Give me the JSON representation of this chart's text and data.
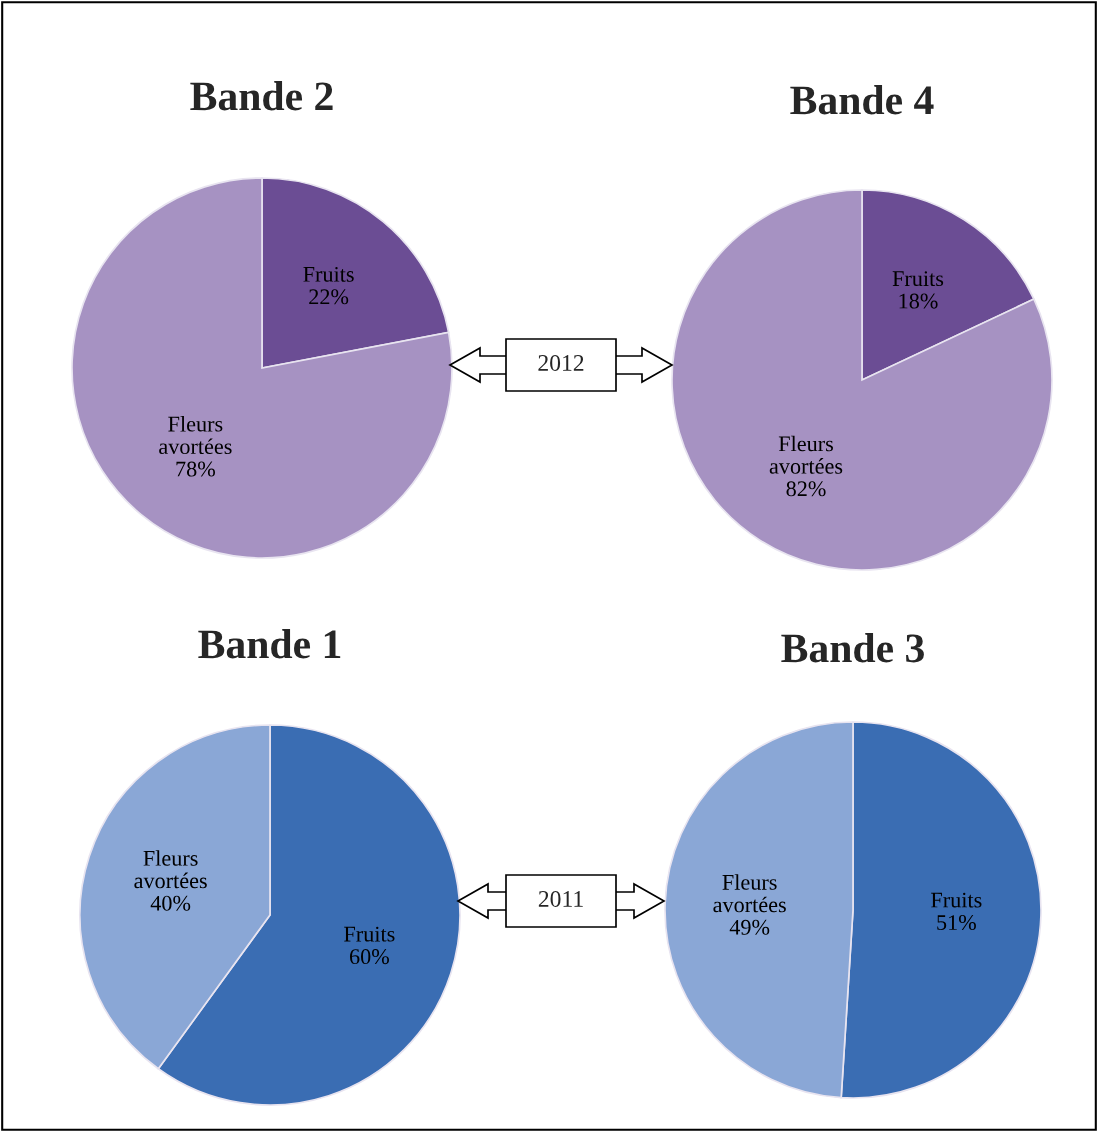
{
  "chart_data": [
    {
      "type": "pie",
      "title": "Bande 2",
      "categories": [
        "Fruits",
        "Fleurs avortées"
      ],
      "values": [
        22,
        78
      ],
      "colors": [
        "#6b4d94",
        "#a692c2"
      ],
      "value_labels": [
        "22%",
        "78%"
      ],
      "annotations": [
        "2012"
      ]
    },
    {
      "type": "pie",
      "title": "Bande 4",
      "categories": [
        "Fruits",
        "Fleurs avortées"
      ],
      "values": [
        18,
        82
      ],
      "colors": [
        "#6b4d94",
        "#a692c2"
      ],
      "value_labels": [
        "18%",
        "82%"
      ]
    },
    {
      "type": "pie",
      "title": "Bande 1",
      "categories": [
        "Fruits",
        "Fleurs avortées"
      ],
      "values": [
        60,
        40
      ],
      "colors": [
        "#3a6db3",
        "#8aa7d6"
      ],
      "value_labels": [
        "60%",
        "40%"
      ],
      "annotations": [
        "2011"
      ]
    },
    {
      "type": "pie",
      "title": "Bande 3",
      "categories": [
        "Fruits",
        "Fleurs avortées"
      ],
      "values": [
        51,
        49
      ],
      "colors": [
        "#3a6db3",
        "#8aa7d6"
      ],
      "value_labels": [
        "51%",
        "49%"
      ]
    }
  ]
}
